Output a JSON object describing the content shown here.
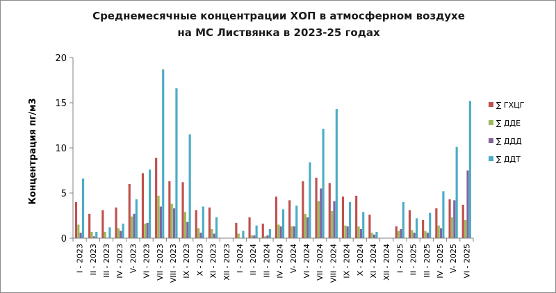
{
  "chart_data": {
    "type": "bar",
    "title": [
      "Среднемесячные концентрации ХОП в атмосферном воздухе",
      "на МС Листвянка  в 2023-25 годах"
    ],
    "ylabel": "Концентрация пг/м3",
    "ylim": [
      0,
      20
    ],
    "yticks": [
      "0",
      "5",
      "10",
      "15",
      "20"
    ],
    "grid": false,
    "legend_position": "right",
    "categories": [
      "I - 2023",
      "II - 2023",
      "III - 2023",
      "IV - 2023",
      "V- 2023",
      "VI - 2023",
      "VII - 2023",
      "VIII - 2023",
      "IX - 2023",
      "X - 2023",
      "XI - 2023",
      "XII - 2023",
      "I - 2024",
      "II - 2024",
      "III - 2024",
      "IV - 2024",
      "V- 2024",
      "VI - 2024",
      "VII - 2024",
      "VIII - 2024",
      "IX - 2024",
      "X - 2024",
      "XI - 2024",
      "XII - 2024",
      "I - 2025",
      "II - 2025",
      "III - 2025",
      "IV - 2025",
      "V- 2025",
      "VI - 2025"
    ],
    "series": [
      {
        "name": "∑ ГХЦГ",
        "color": "#c0504d",
        "values": [
          4.0,
          2.7,
          3.1,
          3.4,
          6.0,
          7.2,
          8.9,
          6.3,
          6.2,
          3.1,
          3.4,
          0,
          1.7,
          2.3,
          1.6,
          4.6,
          4.2,
          6.3,
          6.7,
          6.1,
          4.6,
          4.7,
          2.6,
          0,
          1.3,
          3.1,
          2.0,
          3.3,
          4.3,
          3.7
        ]
      },
      {
        "name": "∑ ДДЕ",
        "color": "#9bbb59",
        "values": [
          1.5,
          0.7,
          0.7,
          1.1,
          2.4,
          1.6,
          4.7,
          3.8,
          2.9,
          1.1,
          1.0,
          0,
          0.5,
          0.3,
          0.2,
          1.5,
          1.3,
          2.7,
          4.1,
          3.0,
          1.4,
          1.3,
          0.6,
          0,
          0.8,
          0.9,
          0.8,
          1.4,
          2.3,
          2.0
        ]
      },
      {
        "name": "∑ ДДД",
        "color": "#8064a2",
        "values": [
          0.6,
          0.2,
          0.05,
          0.8,
          2.7,
          1.7,
          3.5,
          3.3,
          1.8,
          0.6,
          0.5,
          0,
          0.05,
          0.3,
          0.3,
          1.3,
          1.3,
          2.3,
          5.5,
          4.1,
          1.3,
          1.0,
          0.4,
          0,
          1.0,
          0.6,
          0.6,
          1.1,
          4.2,
          7.5
        ]
      },
      {
        "name": "∑ ДДТ",
        "color": "#4bacc6",
        "values": [
          6.6,
          0.7,
          1.2,
          1.6,
          4.3,
          7.6,
          18.7,
          16.6,
          11.5,
          3.5,
          2.3,
          0,
          0.8,
          1.4,
          1.0,
          3.2,
          3.6,
          8.4,
          12.1,
          14.3,
          4.0,
          2.9,
          0.7,
          0,
          4.0,
          2.2,
          2.8,
          5.2,
          10.1,
          15.2
        ]
      }
    ]
  }
}
